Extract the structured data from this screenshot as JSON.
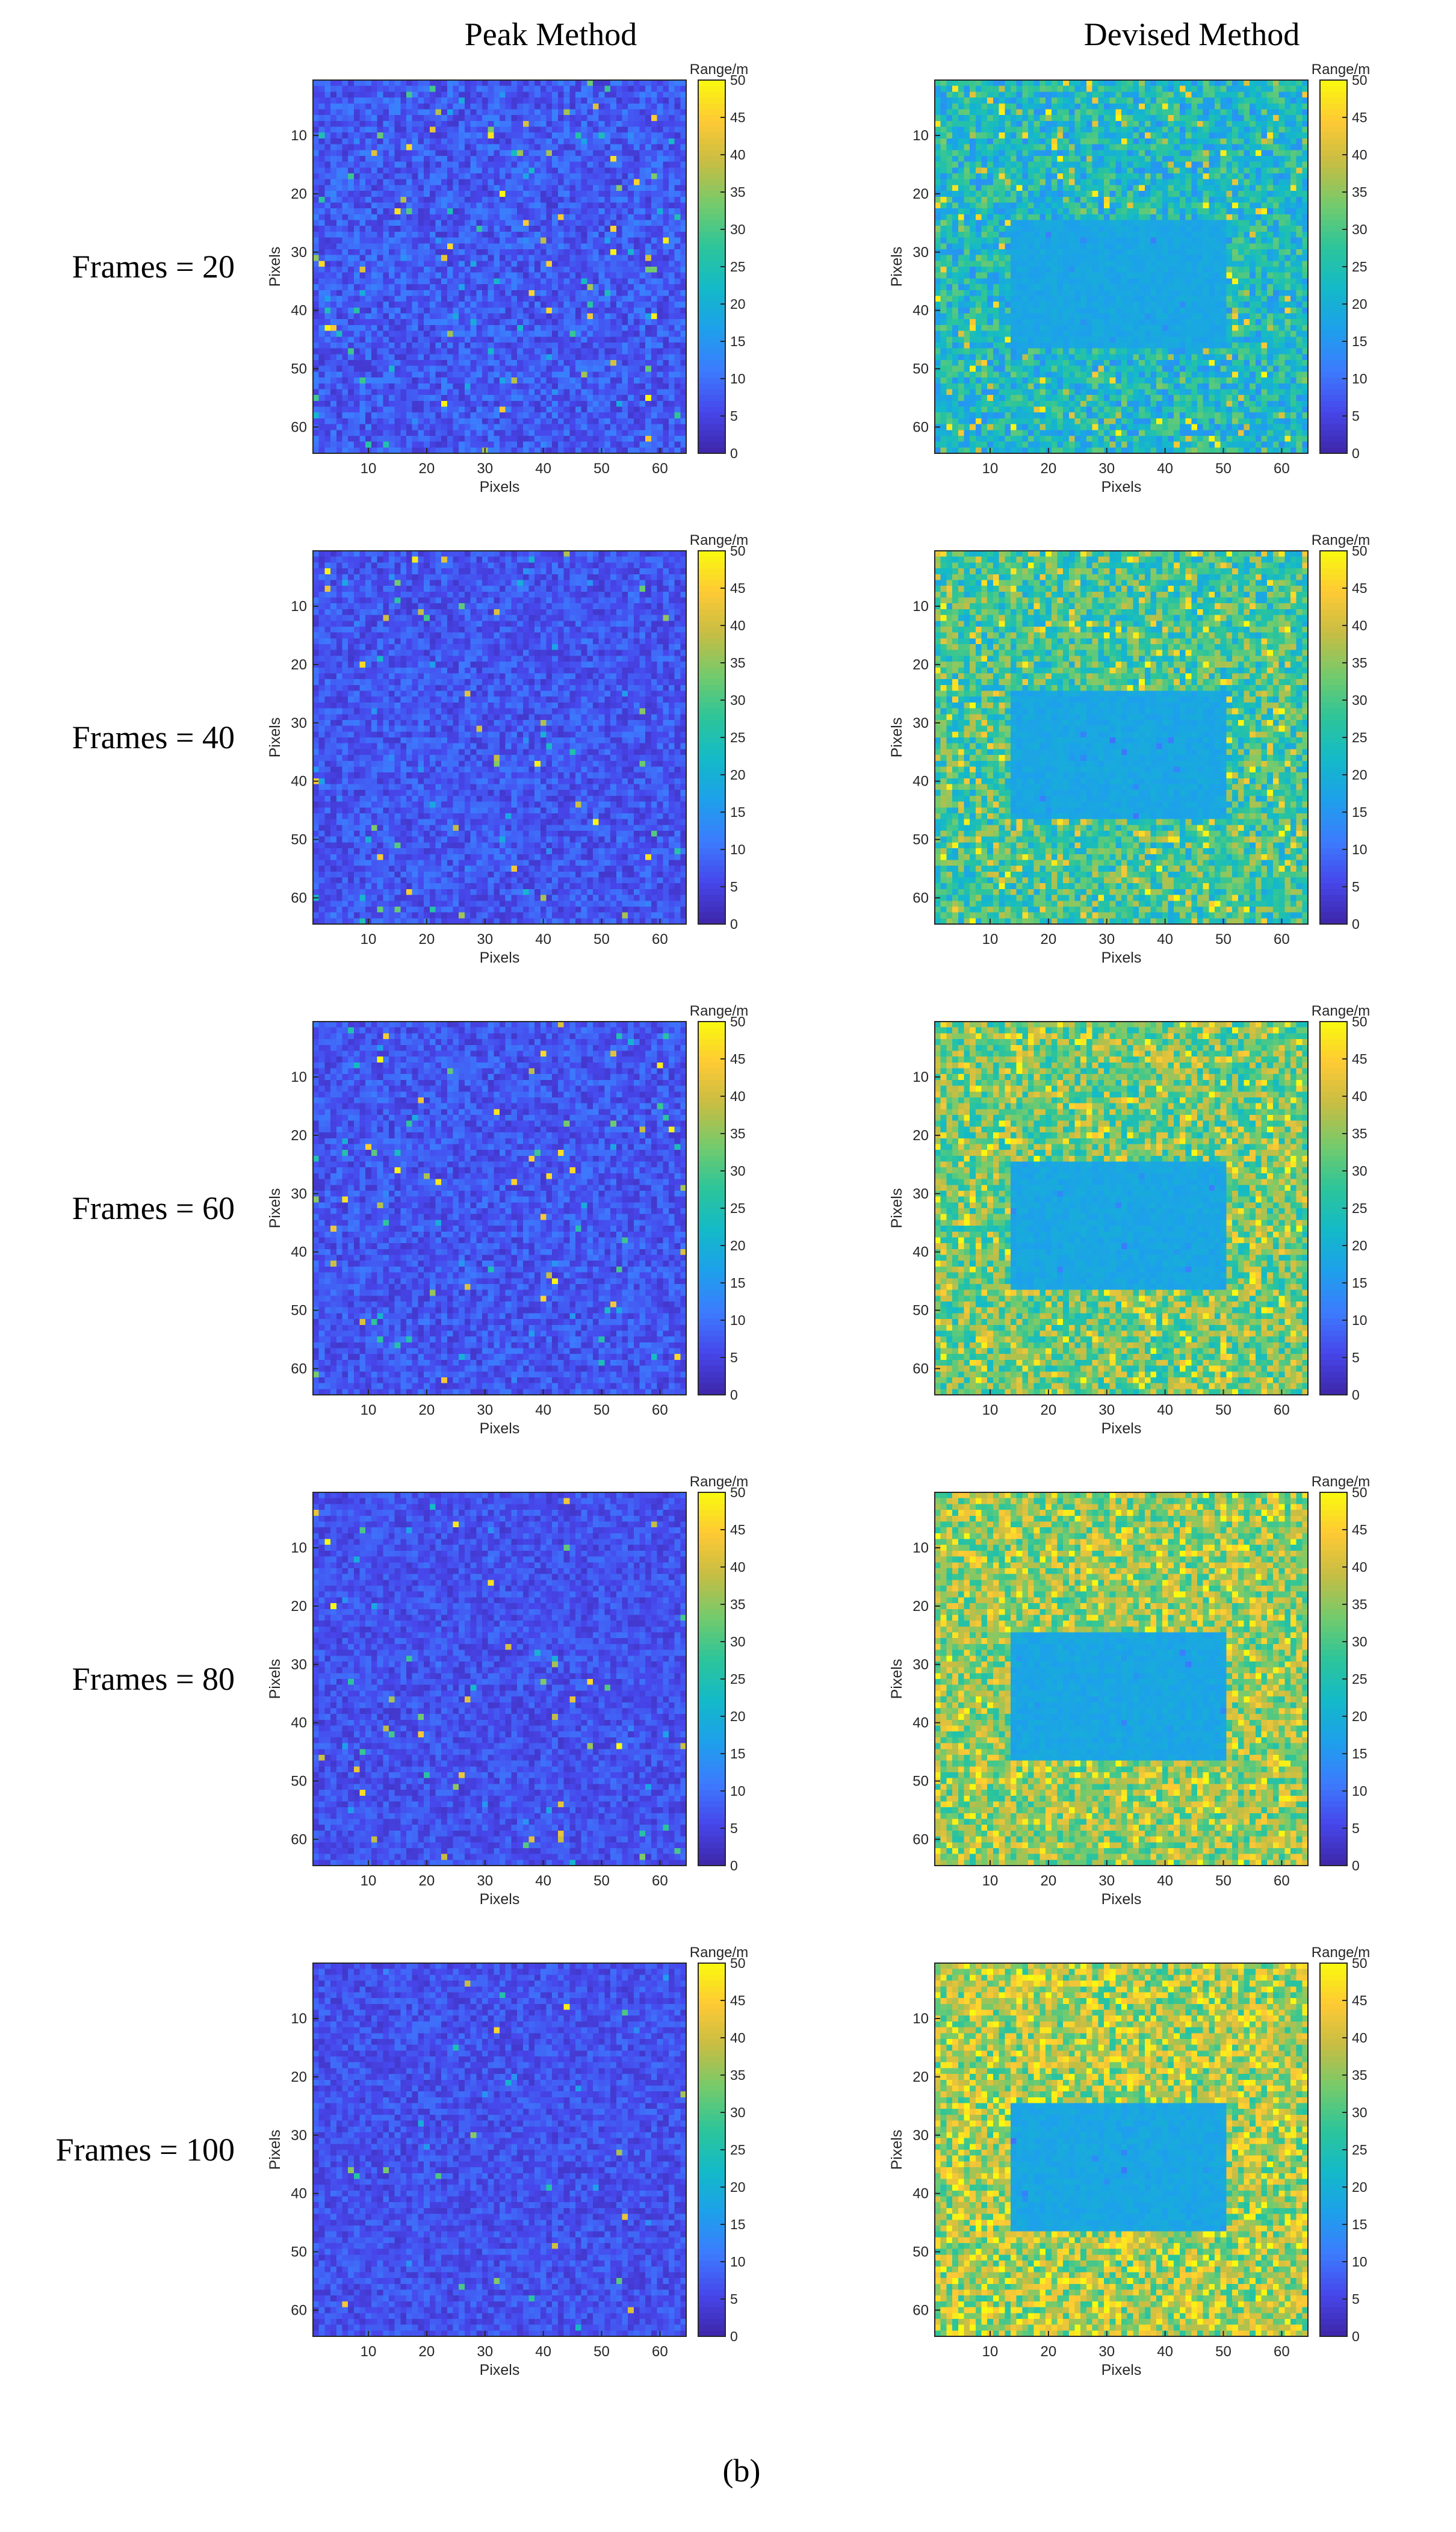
{
  "column_titles": [
    "Peak Method",
    "Devised Method"
  ],
  "row_labels": [
    "Frames = 20",
    "Frames = 40",
    "Frames = 60",
    "Frames = 80",
    "Frames = 100"
  ],
  "caption": "(b)",
  "colormap": [
    "#3e26a8",
    "#4746eb",
    "#3c7cfe",
    "#1da0eb",
    "#14bac7",
    "#2dc599",
    "#75cb6c",
    "#c6bd43",
    "#fec935",
    "#f9fb0e"
  ],
  "chart_data": {
    "type": "heatmap",
    "xlabel": "Pixels",
    "ylabel": "Pixels",
    "colorbar_label": "Range/m",
    "grid_size": 64,
    "xlim": [
      1,
      64
    ],
    "ylim": [
      1,
      64
    ],
    "x_ticks": [
      10,
      20,
      30,
      40,
      50,
      60
    ],
    "y_ticks": [
      10,
      20,
      30,
      40,
      50,
      60
    ],
    "colorbar_range": [
      0,
      50
    ],
    "colorbar_ticks": [
      0,
      5,
      10,
      15,
      20,
      25,
      30,
      35,
      40,
      45,
      50
    ],
    "panels": [
      {
        "method": "Peak Method",
        "frames": 20,
        "background_range_m": [
          3,
          12
        ],
        "target_range_m": null,
        "target_region": null,
        "outlier_fraction": 0.03
      },
      {
        "method": "Devised Method",
        "frames": 20,
        "background_range_m": [
          14,
          32
        ],
        "target_range_m": 18,
        "target_region": {
          "x": [
            14,
            50
          ],
          "y": [
            25,
            46
          ]
        },
        "outlier_fraction": 0.06
      },
      {
        "method": "Peak Method",
        "frames": 40,
        "background_range_m": [
          3,
          11
        ],
        "target_range_m": null,
        "target_region": null,
        "outlier_fraction": 0.02
      },
      {
        "method": "Devised Method",
        "frames": 40,
        "background_range_m": [
          18,
          38
        ],
        "target_range_m": 18,
        "target_region": {
          "x": [
            14,
            50
          ],
          "y": [
            25,
            46
          ]
        },
        "outlier_fraction": 0.08
      },
      {
        "method": "Peak Method",
        "frames": 60,
        "background_range_m": [
          3,
          11
        ],
        "target_range_m": null,
        "target_region": null,
        "outlier_fraction": 0.02
      },
      {
        "method": "Devised Method",
        "frames": 60,
        "background_range_m": [
          22,
          42
        ],
        "target_range_m": 18,
        "target_region": {
          "x": [
            14,
            50
          ],
          "y": [
            25,
            46
          ]
        },
        "outlier_fraction": 0.1
      },
      {
        "method": "Peak Method",
        "frames": 80,
        "background_range_m": [
          3,
          10
        ],
        "target_range_m": null,
        "target_region": null,
        "outlier_fraction": 0.015
      },
      {
        "method": "Devised Method",
        "frames": 80,
        "background_range_m": [
          25,
          44
        ],
        "target_range_m": 18,
        "target_region": {
          "x": [
            14,
            50
          ],
          "y": [
            25,
            46
          ]
        },
        "outlier_fraction": 0.12
      },
      {
        "method": "Peak Method",
        "frames": 100,
        "background_range_m": [
          3,
          10
        ],
        "target_range_m": null,
        "target_region": null,
        "outlier_fraction": 0.01
      },
      {
        "method": "Devised Method",
        "frames": 100,
        "background_range_m": [
          26,
          46
        ],
        "target_range_m": 18,
        "target_region": {
          "x": [
            14,
            50
          ],
          "y": [
            25,
            46
          ]
        },
        "outlier_fraction": 0.14
      }
    ]
  }
}
